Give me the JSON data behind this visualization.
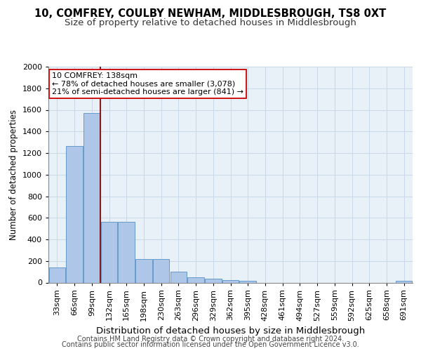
{
  "title1": "10, COMFREY, COULBY NEWHAM, MIDDLESBROUGH, TS8 0XT",
  "title2": "Size of property relative to detached houses in Middlesbrough",
  "xlabel": "Distribution of detached houses by size in Middlesbrough",
  "ylabel": "Number of detached properties",
  "categories": [
    "33sqm",
    "66sqm",
    "99sqm",
    "132sqm",
    "165sqm",
    "198sqm",
    "230sqm",
    "263sqm",
    "296sqm",
    "329sqm",
    "362sqm",
    "395sqm",
    "428sqm",
    "461sqm",
    "494sqm",
    "527sqm",
    "559sqm",
    "592sqm",
    "625sqm",
    "658sqm",
    "691sqm"
  ],
  "values": [
    140,
    1265,
    1570,
    560,
    560,
    220,
    220,
    100,
    52,
    35,
    22,
    18,
    0,
    0,
    0,
    0,
    0,
    0,
    0,
    0,
    15
  ],
  "bar_color": "#aec6e8",
  "bar_edge_color": "#5591c4",
  "vline_color": "#8b1a1a",
  "annotation_text": "10 COMFREY: 138sqm\n← 78% of detached houses are smaller (3,078)\n21% of semi-detached houses are larger (841) →",
  "annotation_box_color": "#ffffff",
  "annotation_box_edge": "#cc0000",
  "ylim": [
    0,
    2000
  ],
  "yticks": [
    0,
    200,
    400,
    600,
    800,
    1000,
    1200,
    1400,
    1600,
    1800,
    2000
  ],
  "grid_color": "#c8d8e8",
  "bg_color": "#e8f0f8",
  "footer1": "Contains HM Land Registry data © Crown copyright and database right 2024.",
  "footer2": "Contains public sector information licensed under the Open Government Licence v3.0.",
  "title1_fontsize": 10.5,
  "title2_fontsize": 9.5,
  "xlabel_fontsize": 9.5,
  "ylabel_fontsize": 8.5,
  "footer_fontsize": 7.0,
  "tick_fontsize": 8.0,
  "annot_fontsize": 8.0
}
